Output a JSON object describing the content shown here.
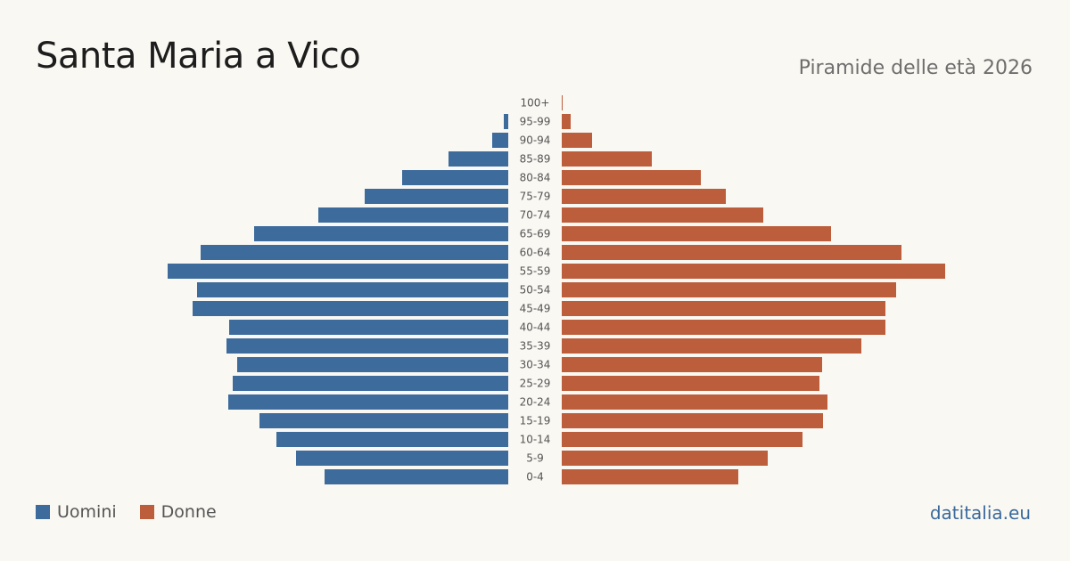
{
  "header": {
    "title": "Santa Maria a Vico",
    "subtitle": "Piramide delle età 2026"
  },
  "legend": {
    "male_label": "Uomini",
    "female_label": "Donne"
  },
  "footer": {
    "source": "datitalia.eu"
  },
  "colors": {
    "male": "#3c6b9c",
    "female": "#bc5e3c",
    "label": "#555555",
    "background": "#faf8f3"
  },
  "chart_data": {
    "type": "bar",
    "orientation": "horizontal-pyramid",
    "categories": [
      "100+",
      "95-99",
      "90-94",
      "85-89",
      "80-84",
      "75-79",
      "70-74",
      "65-69",
      "60-64",
      "55-59",
      "50-54",
      "45-49",
      "40-44",
      "35-39",
      "30-34",
      "25-29",
      "20-24",
      "15-19",
      "10-14",
      "5-9",
      "0-4"
    ],
    "series": [
      {
        "name": "Uomini",
        "values": [
          0,
          5,
          18,
          67,
          119,
          161,
          213,
          285,
          345,
          382,
          349,
          354,
          313,
          316,
          304,
          309,
          314,
          279,
          260,
          238,
          206
        ]
      },
      {
        "name": "Donne",
        "values": [
          1,
          10,
          34,
          101,
          156,
          184,
          226,
          302,
          381,
          430,
          375,
          363,
          363,
          336,
          292,
          289,
          298,
          293,
          270,
          231,
          198
        ]
      }
    ],
    "title": "",
    "xlabel": "",
    "ylabel": "",
    "xlim": [
      0,
      430
    ],
    "grid": false,
    "legend_position": "bottom-left"
  }
}
